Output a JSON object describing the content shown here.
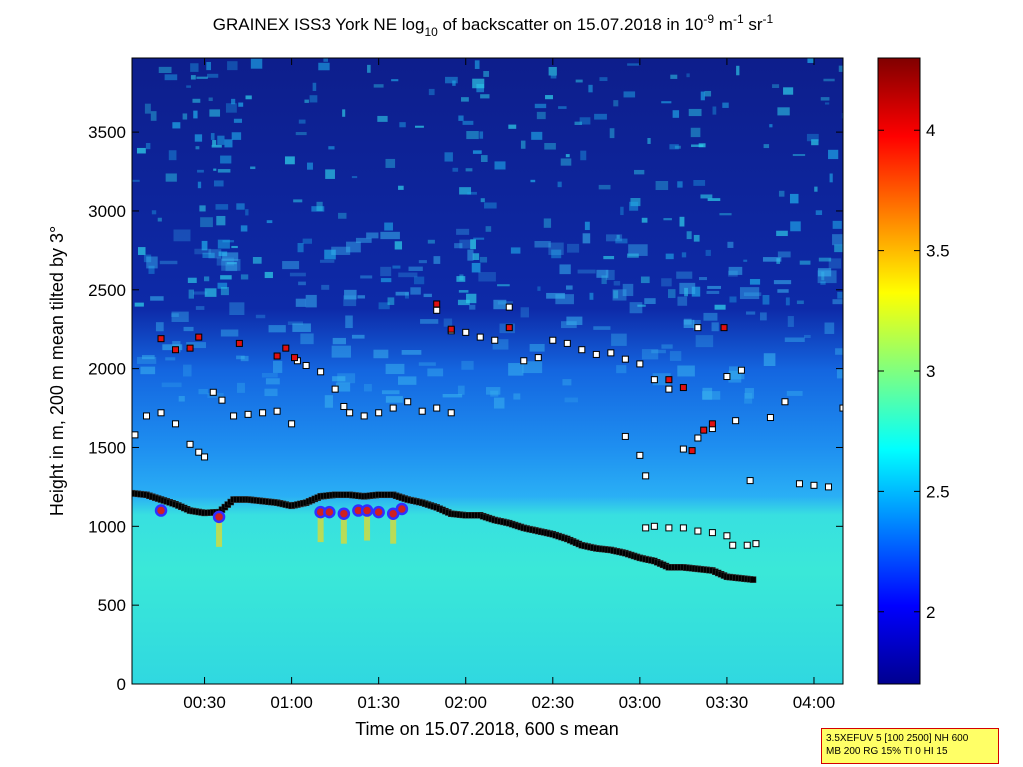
{
  "chart_data": {
    "type": "heatmap",
    "title": {
      "prefix": "GRAINEX ISS3 York NE log",
      "sub": "10",
      "middle": " of backscatter on 15.07.2018 in 10",
      "sup1": "-9",
      "after_sup1": " m",
      "sup2": "-1",
      "after_sup2": " sr",
      "sup3": "-1"
    },
    "xlabel": "Time on 15.07.2018, 600 s mean",
    "ylabel": "Height in m, 200 m mean tilted by 3°",
    "x_unit": "minutes after 00:00",
    "xlim": [
      5,
      250
    ],
    "ylim": [
      0,
      3970
    ],
    "xticks": [
      {
        "value": 30,
        "label": "00:30"
      },
      {
        "value": 60,
        "label": "01:00"
      },
      {
        "value": 90,
        "label": "01:30"
      },
      {
        "value": 120,
        "label": "02:00"
      },
      {
        "value": 150,
        "label": "02:30"
      },
      {
        "value": 180,
        "label": "03:00"
      },
      {
        "value": 210,
        "label": "03:30"
      },
      {
        "value": 240,
        "label": "04:00"
      }
    ],
    "yticks": [
      {
        "value": 0,
        "label": "0"
      },
      {
        "value": 500,
        "label": "500"
      },
      {
        "value": 1000,
        "label": "1000"
      },
      {
        "value": 1500,
        "label": "1500"
      },
      {
        "value": 2000,
        "label": "2000"
      },
      {
        "value": 2500,
        "label": "2500"
      },
      {
        "value": 3000,
        "label": "3000"
      },
      {
        "value": 3500,
        "label": "3500"
      }
    ],
    "colorbar": {
      "min": 1.7,
      "max": 4.3,
      "ticks": [
        {
          "value": 2,
          "label": "2"
        },
        {
          "value": 2.5,
          "label": "2.5"
        },
        {
          "value": 3,
          "label": "3"
        },
        {
          "value": 3.5,
          "label": "3.5"
        },
        {
          "value": 4,
          "label": "4"
        }
      ]
    },
    "mixing_layer_heights": [
      [
        5,
        1210
      ],
      [
        10,
        1200
      ],
      [
        15,
        1170
      ],
      [
        20,
        1140
      ],
      [
        25,
        1100
      ],
      [
        30,
        1085
      ],
      [
        35,
        1090
      ],
      [
        40,
        1170
      ],
      [
        45,
        1170
      ],
      [
        50,
        1160
      ],
      [
        55,
        1150
      ],
      [
        60,
        1130
      ],
      [
        65,
        1150
      ],
      [
        70,
        1190
      ],
      [
        75,
        1200
      ],
      [
        80,
        1200
      ],
      [
        85,
        1190
      ],
      [
        90,
        1200
      ],
      [
        95,
        1200
      ],
      [
        100,
        1170
      ],
      [
        105,
        1150
      ],
      [
        110,
        1120
      ],
      [
        115,
        1080
      ],
      [
        120,
        1070
      ],
      [
        125,
        1070
      ],
      [
        130,
        1040
      ],
      [
        135,
        1020
      ],
      [
        140,
        990
      ],
      [
        145,
        970
      ],
      [
        150,
        950
      ],
      [
        155,
        920
      ],
      [
        160,
        880
      ],
      [
        165,
        860
      ],
      [
        170,
        850
      ],
      [
        175,
        830
      ],
      [
        180,
        800
      ],
      [
        185,
        780
      ],
      [
        190,
        740
      ],
      [
        195,
        740
      ],
      [
        200,
        730
      ],
      [
        205,
        720
      ],
      [
        210,
        680
      ],
      [
        215,
        670
      ],
      [
        220,
        660
      ]
    ],
    "upper_layer_points": [
      [
        6,
        1580
      ],
      [
        10,
        1700
      ],
      [
        15,
        1720
      ],
      [
        20,
        1650
      ],
      [
        25,
        1520
      ],
      [
        28,
        1470
      ],
      [
        30,
        1440
      ],
      [
        33,
        1850
      ],
      [
        36,
        1800
      ],
      [
        40,
        1700
      ],
      [
        45,
        1710
      ],
      [
        50,
        1720
      ],
      [
        55,
        1730
      ],
      [
        60,
        1650
      ],
      [
        62,
        2050
      ],
      [
        65,
        2020
      ],
      [
        70,
        1980
      ],
      [
        75,
        1870
      ],
      [
        78,
        1760
      ],
      [
        80,
        1720
      ],
      [
        85,
        1700
      ],
      [
        90,
        1720
      ],
      [
        95,
        1750
      ],
      [
        100,
        1790
      ],
      [
        105,
        1730
      ],
      [
        110,
        1750
      ],
      [
        115,
        1720
      ],
      [
        110,
        2370
      ],
      [
        115,
        2240
      ],
      [
        120,
        2230
      ],
      [
        125,
        2200
      ],
      [
        130,
        2180
      ],
      [
        135,
        2390
      ],
      [
        140,
        2050
      ],
      [
        145,
        2070
      ],
      [
        150,
        2180
      ],
      [
        155,
        2160
      ],
      [
        160,
        2120
      ],
      [
        165,
        2090
      ],
      [
        170,
        2100
      ],
      [
        175,
        2060
      ],
      [
        180,
        2030
      ],
      [
        175,
        1570
      ],
      [
        180,
        1450
      ],
      [
        182,
        1320
      ],
      [
        185,
        1930
      ],
      [
        190,
        1870
      ],
      [
        195,
        1490
      ],
      [
        200,
        1560
      ],
      [
        205,
        1620
      ],
      [
        200,
        2260
      ],
      [
        210,
        1950
      ],
      [
        215,
        1990
      ],
      [
        213,
        1670
      ],
      [
        218,
        1290
      ],
      [
        225,
        1690
      ],
      [
        230,
        1790
      ],
      [
        235,
        1270
      ],
      [
        240,
        1260
      ],
      [
        245,
        1250
      ],
      [
        250,
        1750
      ],
      [
        182,
        990
      ],
      [
        185,
        1000
      ],
      [
        190,
        990
      ],
      [
        195,
        990
      ],
      [
        200,
        970
      ],
      [
        205,
        960
      ],
      [
        210,
        940
      ],
      [
        212,
        880
      ],
      [
        217,
        880
      ],
      [
        220,
        890
      ]
    ],
    "aerosol_top_points": [
      [
        15,
        2190
      ],
      [
        20,
        2120
      ],
      [
        25,
        2130
      ],
      [
        28,
        2200
      ],
      [
        42,
        2160
      ],
      [
        55,
        2080
      ],
      [
        58,
        2130
      ],
      [
        61,
        2070
      ],
      [
        110,
        2410
      ],
      [
        115,
        2250
      ],
      [
        135,
        2260
      ],
      [
        190,
        1930
      ],
      [
        195,
        1880
      ],
      [
        202,
        1610
      ],
      [
        205,
        1650
      ],
      [
        198,
        1480
      ],
      [
        209,
        2260
      ]
    ],
    "cloud_points": [
      [
        15,
        1100
      ],
      [
        35,
        1060
      ],
      [
        70,
        1090
      ],
      [
        73,
        1090
      ],
      [
        78,
        1080
      ],
      [
        83,
        1100
      ],
      [
        86,
        1100
      ],
      [
        90,
        1090
      ],
      [
        95,
        1080
      ],
      [
        98,
        1110
      ]
    ]
  },
  "info_box": {
    "line1": "3.5XEFUV 5 [100 2500] NH 600",
    "line2": "MB 200 RG 15% TI 0 HI 15"
  },
  "colors": {
    "aerosol_top": "#e01010",
    "marker_fill": "#ffffff",
    "mixing_layer": "#000000",
    "cloud_fill": "#d02020",
    "cloud_ring": "#3030ff",
    "frame": "#000000",
    "box_fill": "#ffff66",
    "box_border": "#d40000"
  }
}
